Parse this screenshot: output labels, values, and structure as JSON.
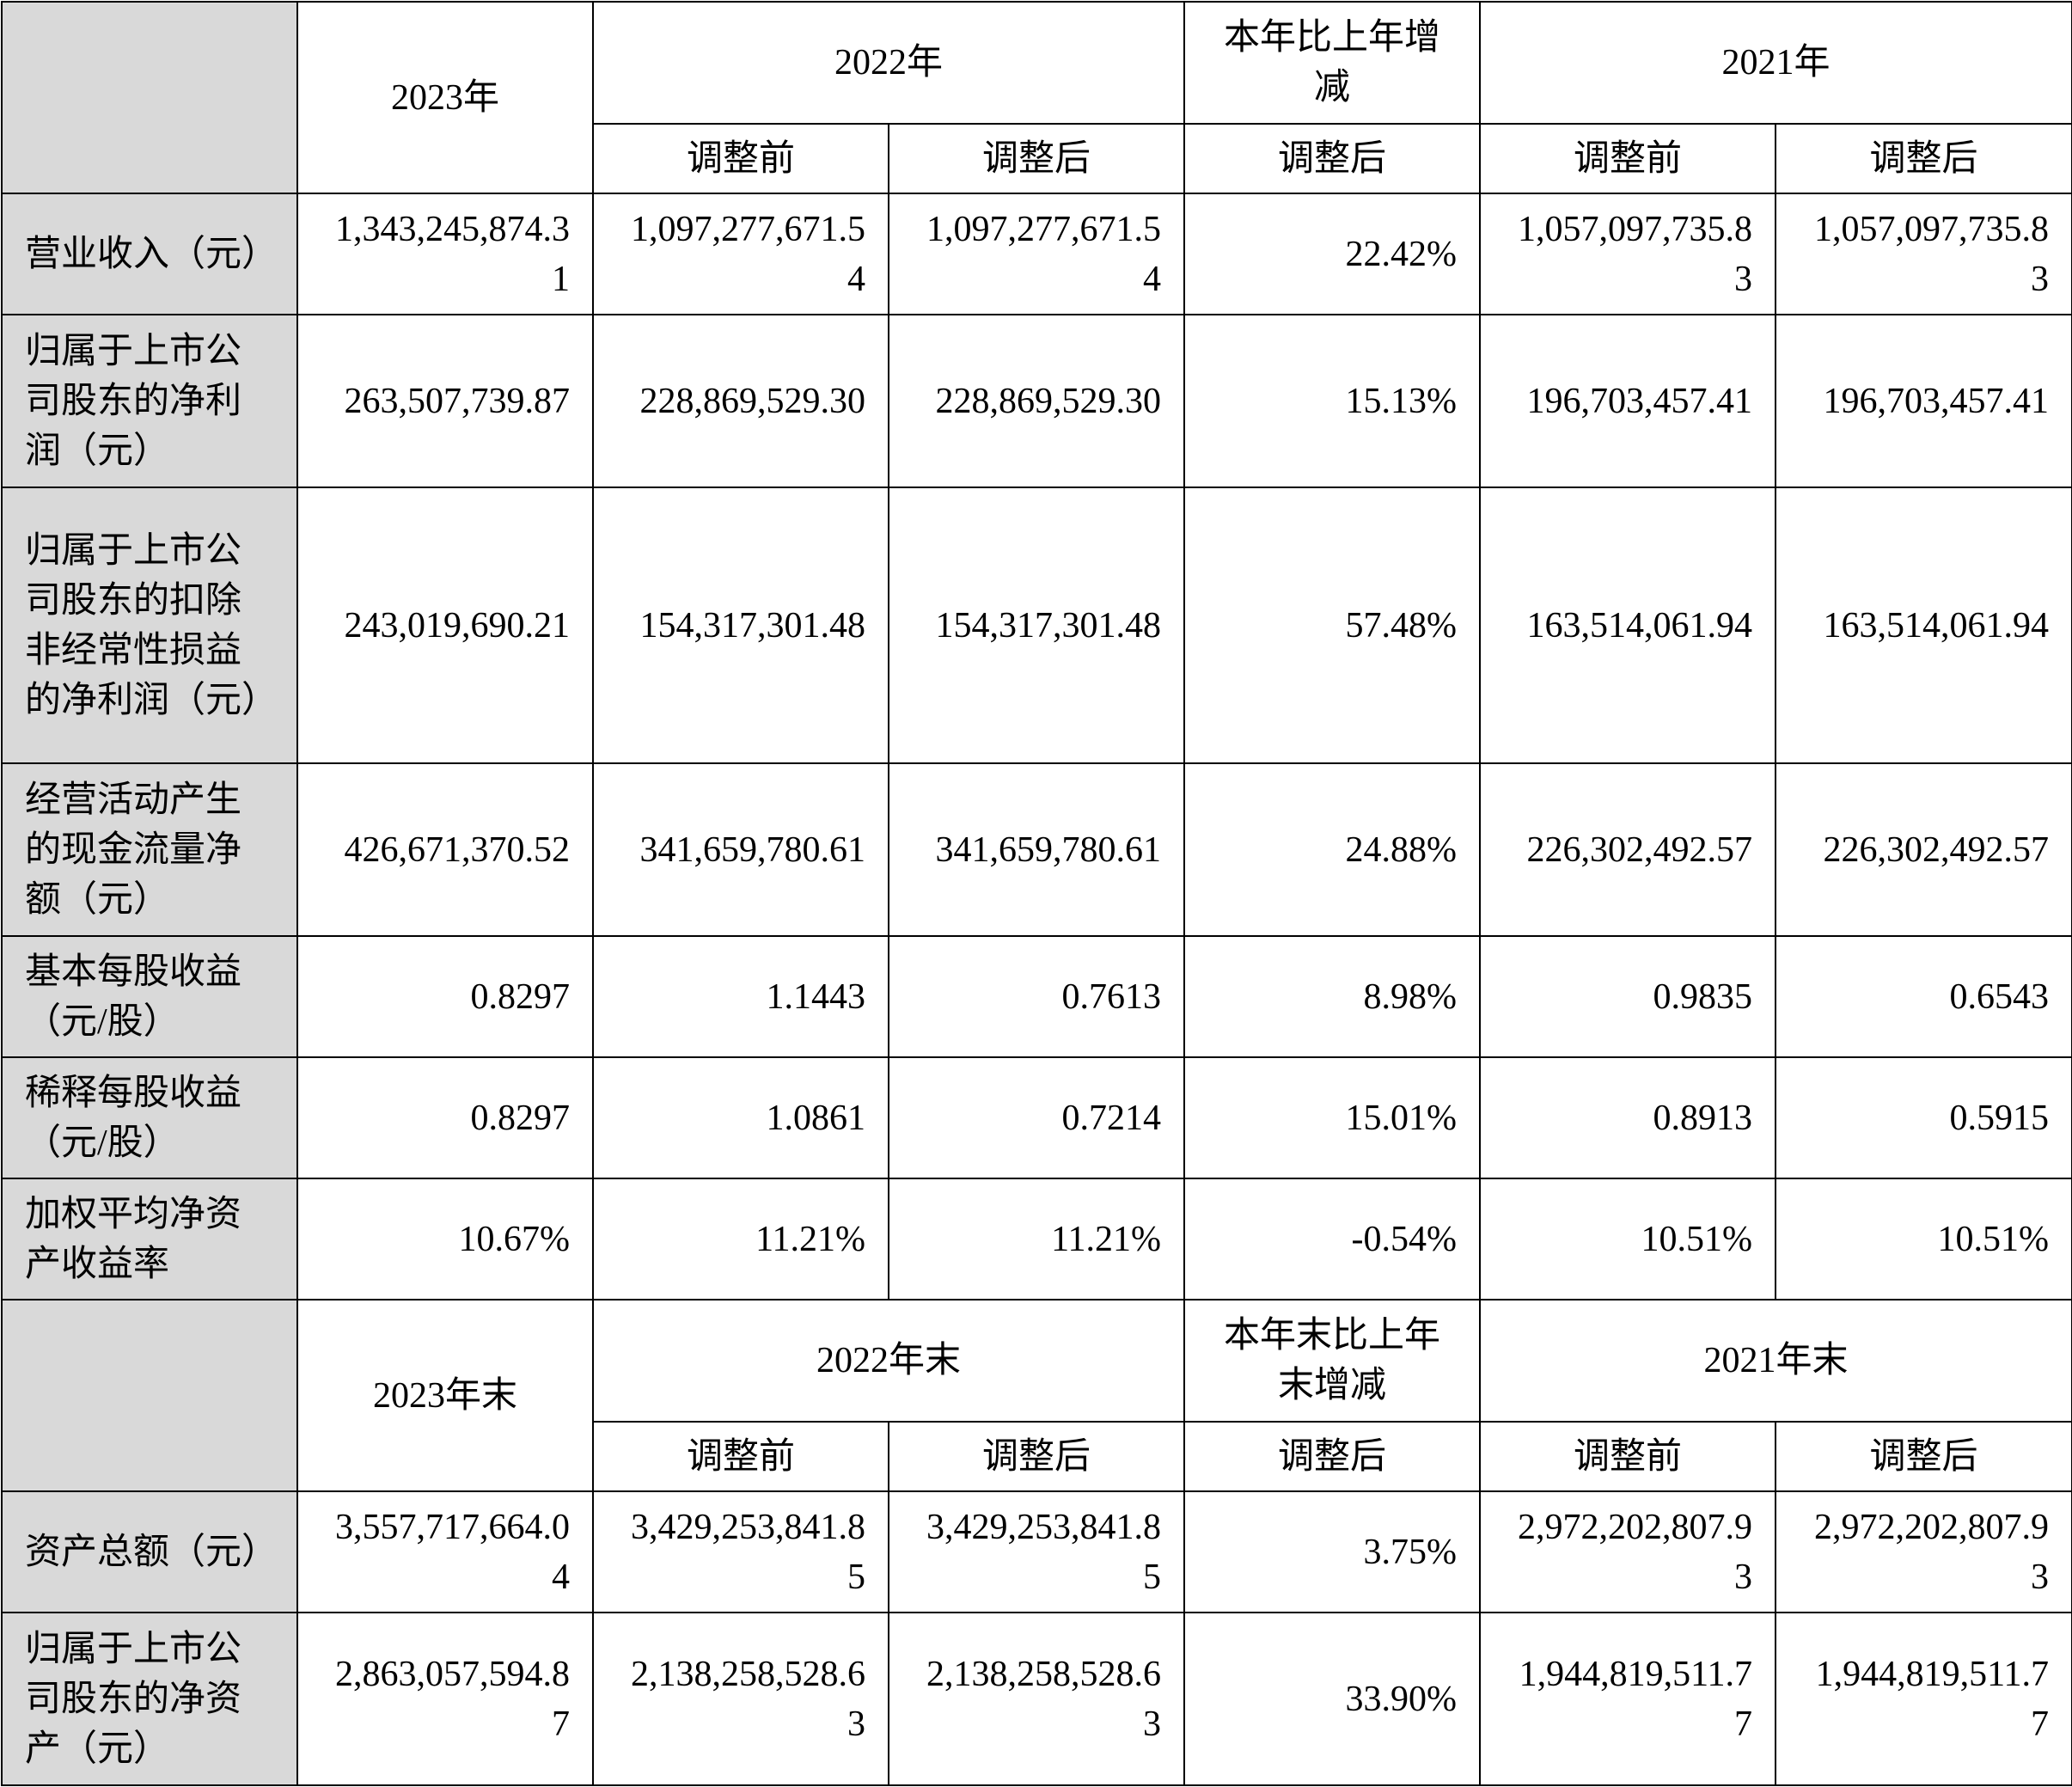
{
  "section1": {
    "year_2023": "2023年",
    "year_2022": "2022年",
    "change": "本年比上年增减",
    "year_2021": "2021年",
    "sub_before_2022": "调整前",
    "sub_after_2022": "调整后",
    "sub_after_change": "调整后",
    "sub_before_2021": "调整前",
    "sub_after_2021": "调整后"
  },
  "rows1": [
    {
      "label": "营业收入（元）",
      "v2023": "1,343,245,874.31",
      "v2022_before": "1,097,277,671.54",
      "v2022_after": "1,097,277,671.54",
      "change": "22.42%",
      "v2021_before": "1,057,097,735.83",
      "v2021_after": "1,057,097,735.83"
    },
    {
      "label": "归属于上市公司股东的净利润（元）",
      "v2023": "263,507,739.87",
      "v2022_before": "228,869,529.30",
      "v2022_after": "228,869,529.30",
      "change": "15.13%",
      "v2021_before": "196,703,457.41",
      "v2021_after": "196,703,457.41"
    },
    {
      "label": "归属于上市公司股东的扣除非经常性损益的净利润（元）",
      "v2023": "243,019,690.21",
      "v2022_before": "154,317,301.48",
      "v2022_after": "154,317,301.48",
      "change": "57.48%",
      "v2021_before": "163,514,061.94",
      "v2021_after": "163,514,061.94"
    },
    {
      "label": "经营活动产生的现金流量净额（元）",
      "v2023": "426,671,370.52",
      "v2022_before": "341,659,780.61",
      "v2022_after": "341,659,780.61",
      "change": "24.88%",
      "v2021_before": "226,302,492.57",
      "v2021_after": "226,302,492.57"
    },
    {
      "label": "基本每股收益（元/股）",
      "v2023": "0.8297",
      "v2022_before": "1.1443",
      "v2022_after": "0.7613",
      "change": "8.98%",
      "v2021_before": "0.9835",
      "v2021_after": "0.6543"
    },
    {
      "label": "稀释每股收益（元/股）",
      "v2023": "0.8297",
      "v2022_before": "1.0861",
      "v2022_after": "0.7214",
      "change": "15.01%",
      "v2021_before": "0.8913",
      "v2021_after": "0.5915"
    },
    {
      "label": "加权平均净资产收益率",
      "v2023": "10.67%",
      "v2022_before": "11.21%",
      "v2022_after": "11.21%",
      "change": "-0.54%",
      "v2021_before": "10.51%",
      "v2021_after": "10.51%"
    }
  ],
  "section2": {
    "year_2023": "2023年末",
    "year_2022": "2022年末",
    "change": "本年末比上年末增减",
    "year_2021": "2021年末",
    "sub_before_2022": "调整前",
    "sub_after_2022": "调整后",
    "sub_after_change": "调整后",
    "sub_before_2021": "调整前",
    "sub_after_2021": "调整后"
  },
  "rows2": [
    {
      "label": "资产总额（元）",
      "v2023": "3,557,717,664.04",
      "v2022_before": "3,429,253,841.85",
      "v2022_after": "3,429,253,841.85",
      "change": "3.75%",
      "v2021_before": "2,972,202,807.93",
      "v2021_after": "2,972,202,807.93"
    },
    {
      "label": "归属于上市公司股东的净资产（元）",
      "v2023": "2,863,057,594.87",
      "v2022_before": "2,138,258,528.63",
      "v2022_after": "2,138,258,528.63",
      "change": "33.90%",
      "v2021_before": "1,944,819,511.77",
      "v2021_after": "1,944,819,511.77"
    }
  ]
}
